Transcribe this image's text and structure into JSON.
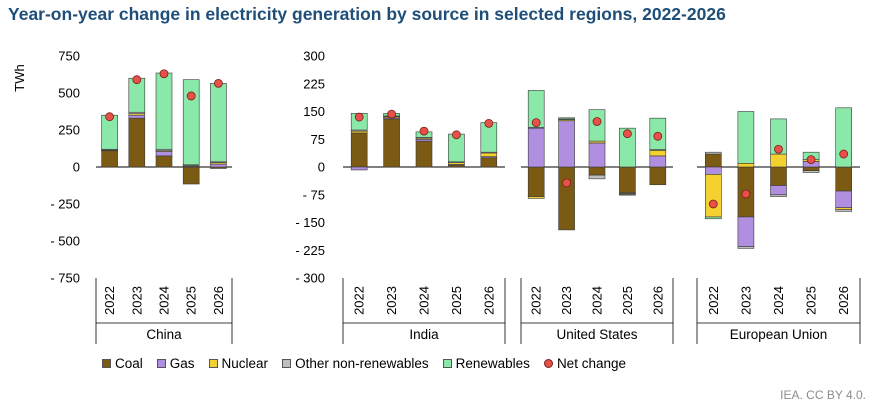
{
  "title": "Year-on-year change in electricity generation by source in selected regions, 2022-2026",
  "source": "IEA. CC BY 4.0.",
  "chart_data": [
    {
      "type": "bar",
      "stacked": true,
      "ylabel": "TWh",
      "ylim": [
        -750,
        750
      ],
      "yticks": [
        750,
        500,
        250,
        0,
        -250,
        -500,
        -750
      ],
      "ytick_labels": [
        "750",
        "500",
        "250",
        "0",
        "- 250",
        "- 500",
        "- 750"
      ],
      "groups": [
        {
          "name": "China",
          "categories": [
            "2022",
            "2023",
            "2024",
            "2025",
            "2026"
          ],
          "series": [
            {
              "name": "Coal",
              "values": [
                110,
                330,
                75,
                -115,
                -10
              ]
            },
            {
              "name": "Gas",
              "values": [
                5,
                20,
                30,
                5,
                20
              ]
            },
            {
              "name": "Nuclear",
              "values": [
                3,
                10,
                5,
                5,
                10
              ]
            },
            {
              "name": "Other non-renewables",
              "values": [
                2,
                10,
                10,
                5,
                5
              ]
            },
            {
              "name": "Renewables",
              "values": [
                230,
                230,
                515,
                575,
                530
              ]
            }
          ],
          "net_change": [
            340,
            590,
            630,
            480,
            565
          ]
        }
      ]
    },
    {
      "type": "bar",
      "stacked": true,
      "ylim": [
        -300,
        300
      ],
      "yticks": [
        300,
        225,
        150,
        75,
        0,
        -75,
        -150,
        -225,
        -300
      ],
      "ytick_labels": [
        "300",
        "225",
        "150",
        "75",
        "0",
        "- 75",
        "- 150",
        "- 225",
        "- 300"
      ],
      "groups": [
        {
          "name": "India",
          "categories": [
            "2022",
            "2023",
            "2024",
            "2025",
            "2026"
          ],
          "series": [
            {
              "name": "Coal",
              "values": [
                92,
                130,
                70,
                5,
                25
              ]
            },
            {
              "name": "Gas",
              "values": [
                -8,
                3,
                5,
                2,
                3
              ]
            },
            {
              "name": "Nuclear",
              "values": [
                5,
                3,
                3,
                5,
                10
              ]
            },
            {
              "name": "Other non-renewables",
              "values": [
                3,
                2,
                2,
                2,
                2
              ]
            },
            {
              "name": "Renewables",
              "values": [
                45,
                7,
                15,
                75,
                80
              ]
            }
          ],
          "net_change": [
            135,
            143,
            97,
            87,
            118
          ]
        },
        {
          "name": "United States",
          "categories": [
            "2022",
            "2023",
            "2024",
            "2025",
            "2026"
          ],
          "series": [
            {
              "name": "Coal",
              "values": [
                -80,
                -170,
                -22,
                -70,
                -48
              ]
            },
            {
              "name": "Gas",
              "values": [
                105,
                125,
                65,
                -2,
                30
              ]
            },
            {
              "name": "Nuclear",
              "values": [
                -5,
                3,
                5,
                -2,
                15
              ]
            },
            {
              "name": "Other non-renewables",
              "values": [
                2,
                2,
                -10,
                -2,
                2
              ]
            },
            {
              "name": "Renewables",
              "values": [
                100,
                3,
                85,
                105,
                85
              ]
            }
          ],
          "net_change": [
            120,
            -43,
            123,
            90,
            83
          ]
        },
        {
          "name": "European Union",
          "categories": [
            "2022",
            "2023",
            "2024",
            "2025",
            "2026"
          ],
          "series": [
            {
              "name": "Coal",
              "values": [
                35,
                -135,
                -50,
                -10,
                -65
              ]
            },
            {
              "name": "Gas",
              "values": [
                -20,
                -80,
                -25,
                15,
                -45
              ]
            },
            {
              "name": "Nuclear",
              "values": [
                -115,
                10,
                35,
                5,
                -5
              ]
            },
            {
              "name": "Other non-renewables",
              "values": [
                5,
                -5,
                -5,
                -5,
                -5
              ]
            },
            {
              "name": "Renewables",
              "values": [
                -5,
                140,
                95,
                20,
                160
              ]
            }
          ],
          "net_change": [
            -100,
            -73,
            48,
            20,
            35
          ]
        }
      ]
    }
  ],
  "legend": [
    {
      "name": "Coal",
      "color": "#7b5a14",
      "kind": "bar"
    },
    {
      "name": "Gas",
      "color": "#b08fe0",
      "kind": "bar"
    },
    {
      "name": "Nuclear",
      "color": "#f5d130",
      "kind": "bar"
    },
    {
      "name": "Other non-renewables",
      "color": "#bfbfbf",
      "kind": "bar"
    },
    {
      "name": "Renewables",
      "color": "#8ae8a8",
      "kind": "bar"
    },
    {
      "name": "Net change",
      "color": "#e8504a",
      "kind": "dot"
    }
  ]
}
